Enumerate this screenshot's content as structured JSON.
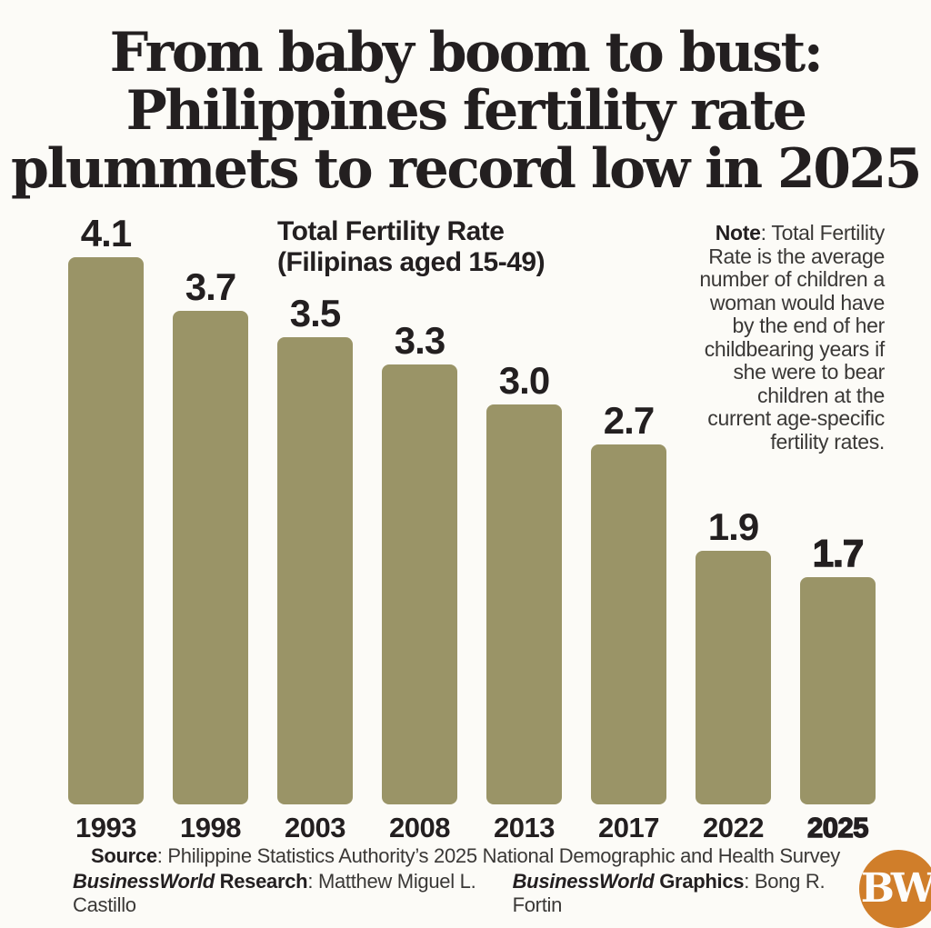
{
  "title": {
    "lines": [
      "From baby boom to bust:",
      "Philippines fertility rate",
      "plummets to record low in 2025"
    ]
  },
  "chart_label": {
    "line1": "Total Fertility Rate",
    "line2": "(Filipinas aged 15-49)"
  },
  "note": {
    "label": "Note",
    "text": ": Total Fertility Rate is the average number of children a woman would have by the end of her childbearing years if she were to bear children at the current age-specific fertility rates."
  },
  "chart_data": {
    "type": "bar",
    "title": "Total Fertility Rate (Filipinas aged 15-49)",
    "categories": [
      "1993",
      "1998",
      "2003",
      "2008",
      "2013",
      "2017",
      "2022",
      "2025"
    ],
    "values": [
      4.1,
      3.7,
      3.5,
      3.3,
      3.0,
      2.7,
      1.9,
      1.7
    ],
    "labels": [
      "4.1",
      "3.7",
      "3.5",
      "3.3",
      "3.0",
      "2.7",
      "1.9",
      "1.7"
    ],
    "emphasized_category": "2025",
    "xlabel": "",
    "ylabel": "",
    "ylim": [
      0,
      4.4
    ],
    "grid": false,
    "legend": false,
    "bar_color": "#9a9467"
  },
  "footer": {
    "source_label": "Source",
    "source_text": ": Philippine Statistics Authority’s 2025 National Demographic and Health Survey",
    "research_brand": "BusinessWorld",
    "research_label": " Research",
    "research_text": ": Matthew Miguel L. Castillo",
    "graphics_brand": "BusinessWorld",
    "graphics_label": " Graphics",
    "graphics_text": ": Bong R. Fortin"
  },
  "logo": {
    "text": "BW"
  },
  "colors": {
    "background": "#fcfbf7",
    "bar": "#9a9467",
    "text": "#231f20",
    "note_text": "#3a3836",
    "logo_orange": "#d07e2a"
  }
}
